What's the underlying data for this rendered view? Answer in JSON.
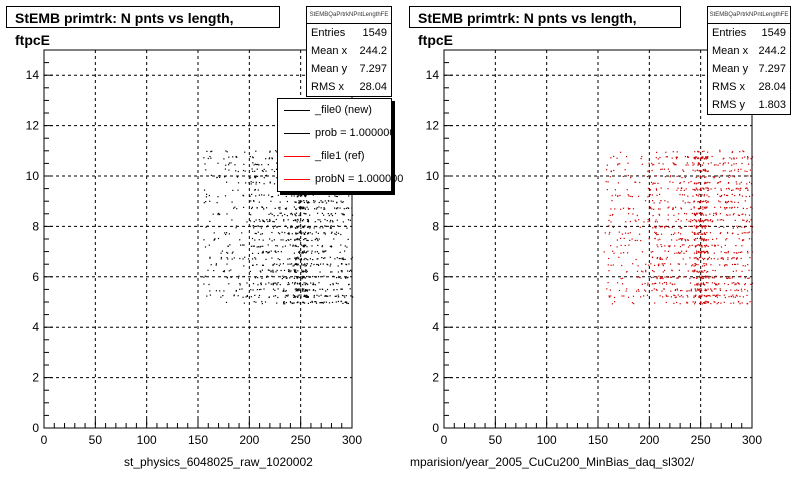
{
  "panels": [
    {
      "title": "StEMB primtrk: N pnts vs length, ftpcE",
      "stats": {
        "name": "StEMBQaPrtrkNPntLengthFE",
        "rows": [
          {
            "label": "Entries",
            "value": "1549"
          },
          {
            "label": "Mean x",
            "value": "244.2"
          },
          {
            "label": "Mean y",
            "value": "7.297"
          },
          {
            "label": "RMS x",
            "value": "28.04"
          }
        ]
      },
      "legend": [
        {
          "label": "_file0 (new)",
          "color": "#000000"
        },
        {
          "label": "prob = 1.000000",
          "color": "#000000"
        },
        {
          "label": "_file1 (ref)",
          "color": "#ff0000"
        },
        {
          "label": "probN = 1.000000",
          "color": "#ff0000"
        }
      ],
      "xtitle": "st_physics_6048025_raw_1020002",
      "marker_color": "#000000"
    },
    {
      "title": "StEMB primtrk: N pnts vs length, ftpcE",
      "stats": {
        "name": "StEMBQaPrtrkNPntLengthFE",
        "rows": [
          {
            "label": "Entries",
            "value": "1549"
          },
          {
            "label": "Mean x",
            "value": "244.2"
          },
          {
            "label": "Mean y",
            "value": "7.297"
          },
          {
            "label": "RMS x",
            "value": "28.04"
          },
          {
            "label": "RMS y",
            "value": "1.803"
          }
        ]
      },
      "xtitle": "mparision/year_2005_CuCu200_MinBias_daq_sl302/",
      "marker_color": "#cc0000"
    }
  ],
  "chart_data": [
    {
      "type": "scatter",
      "title": "StEMB primtrk: N pnts vs length, ftpcE",
      "xlabel": "st_physics_6048025_raw_1020002",
      "ylabel": "",
      "xlim": [
        0,
        300
      ],
      "ylim": [
        0,
        15
      ],
      "xticks": [
        0,
        50,
        100,
        150,
        200,
        250,
        300
      ],
      "yticks": [
        0,
        2,
        4,
        6,
        8,
        10,
        12,
        14
      ],
      "grid": true,
      "entries": 1549,
      "mean_x": 244.2,
      "mean_y": 7.297,
      "rms_x": 28.04,
      "point_region": {
        "x": [
          155,
          300
        ],
        "y": [
          5,
          11
        ]
      },
      "series": [
        {
          "name": "_file0 (new)",
          "color": "#000000"
        }
      ]
    },
    {
      "type": "scatter",
      "title": "StEMB primtrk: N pnts vs length, ftpcE",
      "xlabel": "mparision/year_2005_CuCu200_MinBias_daq_sl302/",
      "ylabel": "",
      "xlim": [
        0,
        300
      ],
      "ylim": [
        0,
        15
      ],
      "xticks": [
        0,
        50,
        100,
        150,
        200,
        250,
        300
      ],
      "yticks": [
        0,
        2,
        4,
        6,
        8,
        10,
        12,
        14
      ],
      "grid": true,
      "entries": 1549,
      "mean_x": 244.2,
      "mean_y": 7.297,
      "rms_x": 28.04,
      "rms_y": 1.803,
      "point_region": {
        "x": [
          155,
          300
        ],
        "y": [
          5,
          11
        ]
      },
      "series": [
        {
          "name": "_file1 (ref)",
          "color": "#cc0000"
        }
      ]
    }
  ]
}
